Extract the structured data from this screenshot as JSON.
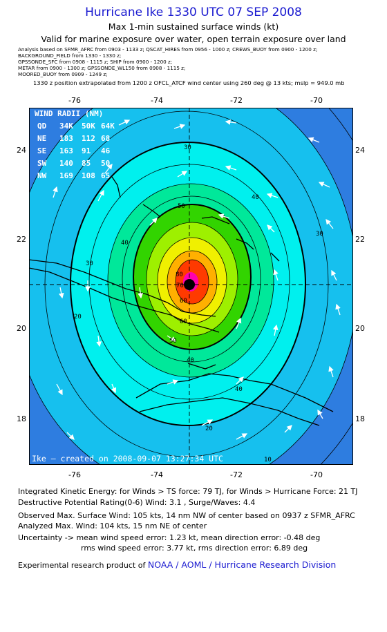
{
  "header": {
    "title": "Hurricane Ike 1330 UTC 07 SEP 2008",
    "subtitle": "Max 1-min sustained surface winds (kt)",
    "validity": "Valid for marine exposure over water, open terrain exposure over land"
  },
  "analysis_sources": [
    "Analysis based on  SFMR_AFRC from 0903 - 1133 z;  QSCAT_HIRES from 0956 - 1000 z;  CREWS_BUOY from 0900 - 1200 z;",
    "BACKGROUND_FIELD from 1330 - 1330 z;",
    "GPSSONDE_SFC from 0908 - 1115 z;  SHIP from 0900 - 1200 z;",
    "METAR from 0900 - 1300 z;  GPSSONDE_WL150 from 0908 - 1115 z;",
    "MOORED_BUOY from 0909 - 1249 z;"
  ],
  "position_note": "1330 z position extrapolated from 1200 z OFCL_ATCF wind center using 260 deg @ 13 kts; mslp = 949.0 mb",
  "axes": {
    "lon_ticks": [
      "-76",
      "-74",
      "-72",
      "-70"
    ],
    "lat_ticks": [
      "24",
      "22",
      "20",
      "18"
    ]
  },
  "wind_radii": {
    "title": "WIND RADII (NM)",
    "header": [
      "QD",
      "34K",
      "50K",
      "64K"
    ],
    "rows": [
      {
        "qd": "NE",
        "r34": "183",
        "r50": "112",
        "r64": "68"
      },
      {
        "qd": "SE",
        "r34": "163",
        "r50": "91",
        "r64": "46"
      },
      {
        "qd": "SW",
        "r34": "140",
        "r50": "85",
        "r64": "50"
      },
      {
        "qd": "NW",
        "r34": "169",
        "r50": "108",
        "r64": "65"
      }
    ]
  },
  "contour_labels": [
    "30",
    "40",
    "50",
    "60",
    "70",
    "80",
    "40",
    "30",
    "20",
    "30",
    "40",
    "50",
    "60",
    "40",
    "20",
    "10"
  ],
  "created": "Ike – created on 2008-09-07 13:27:34 UTC",
  "footer": {
    "ike": "Integrated Kinetic Energy:  for Winds > TS force: 79 TJ,  for Winds > Hurricane Force: 21 TJ",
    "dpr": "Destructive Potential Rating(0-6)   Wind: 3.1 , Surge/Waves: 4.4",
    "obs_max": "Observed Max. Surface Wind: 105 kts, 14 nm NW of center based on 0937 z SFMR_AFRC",
    "ana_max": "Analyzed Max. Wind: 104 kts, 15 nm NE of center",
    "unc1": "Uncertainty -> mean wind speed error: 1.23 kt,   mean direction error:  -0.48 deg",
    "unc2": "rms wind speed error: 3.77 kt,   rms direction error: 6.89 deg",
    "product": "Experimental research product of",
    "org": "NOAA / AOML / Hurricane Research Division"
  },
  "colors": {
    "title": "#1a1ad0",
    "band_10": "#3838c8",
    "band_20": "#2e7de0",
    "band_30": "#16c0ee",
    "band_40": "#00f0ee",
    "band_50": "#00e89a",
    "band_60": "#32d400",
    "band_70": "#9ef000",
    "band_80": "#f0f000",
    "band_90": "#ffb000",
    "band_100": "#ff3a00",
    "core": "#ff00b0"
  }
}
